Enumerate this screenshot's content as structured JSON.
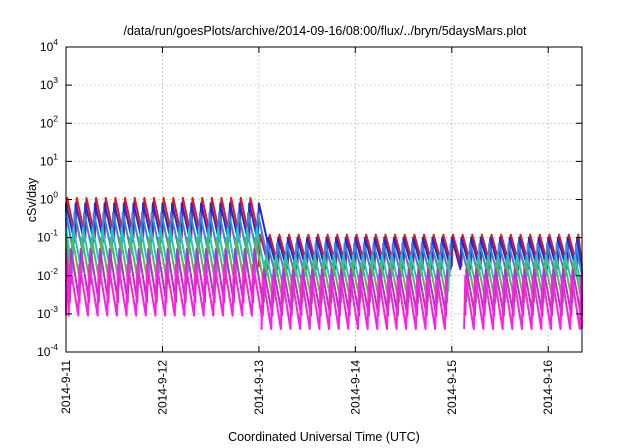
{
  "chart_data": {
    "type": "line",
    "title": "/data/run/goesPlots/archive/2014-09-16/08:00/flux/../bryn/5daysMars.plot",
    "xlabel": "Coordinated Universal Time (UTC)",
    "ylabel": "cSv/day",
    "yscale": "log",
    "ylim": [
      0.0001,
      10000
    ],
    "y_tick_exponents": [
      "-4",
      "-3",
      "-2",
      "-1",
      "0",
      "1",
      "2",
      "3",
      "4"
    ],
    "y_tick_base": "10",
    "x_tick_labels": [
      "2014-9-11",
      "2014-9-12",
      "2014-9-13",
      "2014-9-14",
      "2014-9-15",
      "2014-9-16"
    ],
    "xlim_days": [
      0.0,
      5.35
    ],
    "grid": true,
    "legend": "none",
    "sawtooth_period_hours": 2.4,
    "series": [
      {
        "color": "#e8141e",
        "peak_day1": 1.1,
        "trough_day1": 0.1,
        "peak_later": 0.12,
        "trough_later": 0.018
      },
      {
        "color": "#1f2bd4",
        "peak_day1": 0.8,
        "trough_day1": 0.08,
        "peak_later": 0.1,
        "trough_later": 0.015
      },
      {
        "color": "#2f86f0",
        "peak_day1": 0.45,
        "trough_day1": 0.04,
        "peak_later": 0.07,
        "trough_later": 0.01
      },
      {
        "color": "#17c8d0",
        "peak_day1": 0.18,
        "trough_day1": 0.012,
        "peak_later": 0.035,
        "trough_later": 0.004
      },
      {
        "color": "#5bb84c",
        "peak_day1": 0.1,
        "trough_day1": 0.006,
        "peak_later": 0.025,
        "trough_later": 0.002
      },
      {
        "color": "#c02cc8",
        "peak_day1": 0.05,
        "trough_day1": 0.002,
        "peak_later": 0.015,
        "trough_later": 0.0009
      },
      {
        "color": "#ff1fe0",
        "peak_day1": 0.02,
        "trough_day1": 0.0009,
        "peak_later": 0.01,
        "trough_later": 0.0004
      }
    ]
  }
}
